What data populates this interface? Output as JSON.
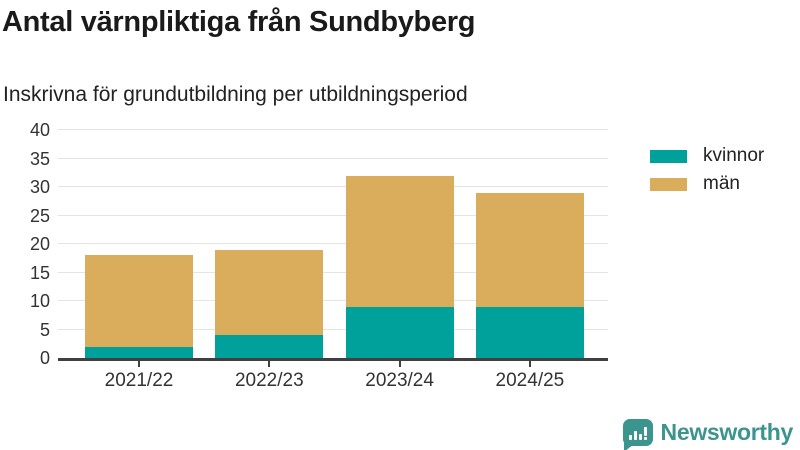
{
  "chart_data": {
    "type": "bar",
    "stacked": true,
    "title": "Antal värnpliktiga från Sundbyberg",
    "subtitle": "Inskrivna för grundutbildning per utbildningsperiod",
    "categories": [
      "2021/22",
      "2022/23",
      "2023/24",
      "2024/25"
    ],
    "series": [
      {
        "name": "kvinnor",
        "color": "#00a19a",
        "values": [
          2,
          4,
          9,
          9
        ]
      },
      {
        "name": "män",
        "color": "#d9ad5c",
        "values": [
          16,
          15,
          23,
          20
        ]
      }
    ],
    "ylim": [
      0,
      40
    ],
    "yticks": [
      0,
      5,
      10,
      15,
      20,
      25,
      30,
      35,
      40
    ],
    "grid": true,
    "legend_position": "right",
    "colors": {
      "gridline": "#e4e4e4",
      "axis_line": "#404040",
      "tick_label": "#333333"
    }
  },
  "branding": {
    "logo_text": "Newsworthy",
    "logo_icon": "newsworthy-speech-bubble-bar-chart-icon",
    "logo_color": "#3b948e"
  }
}
